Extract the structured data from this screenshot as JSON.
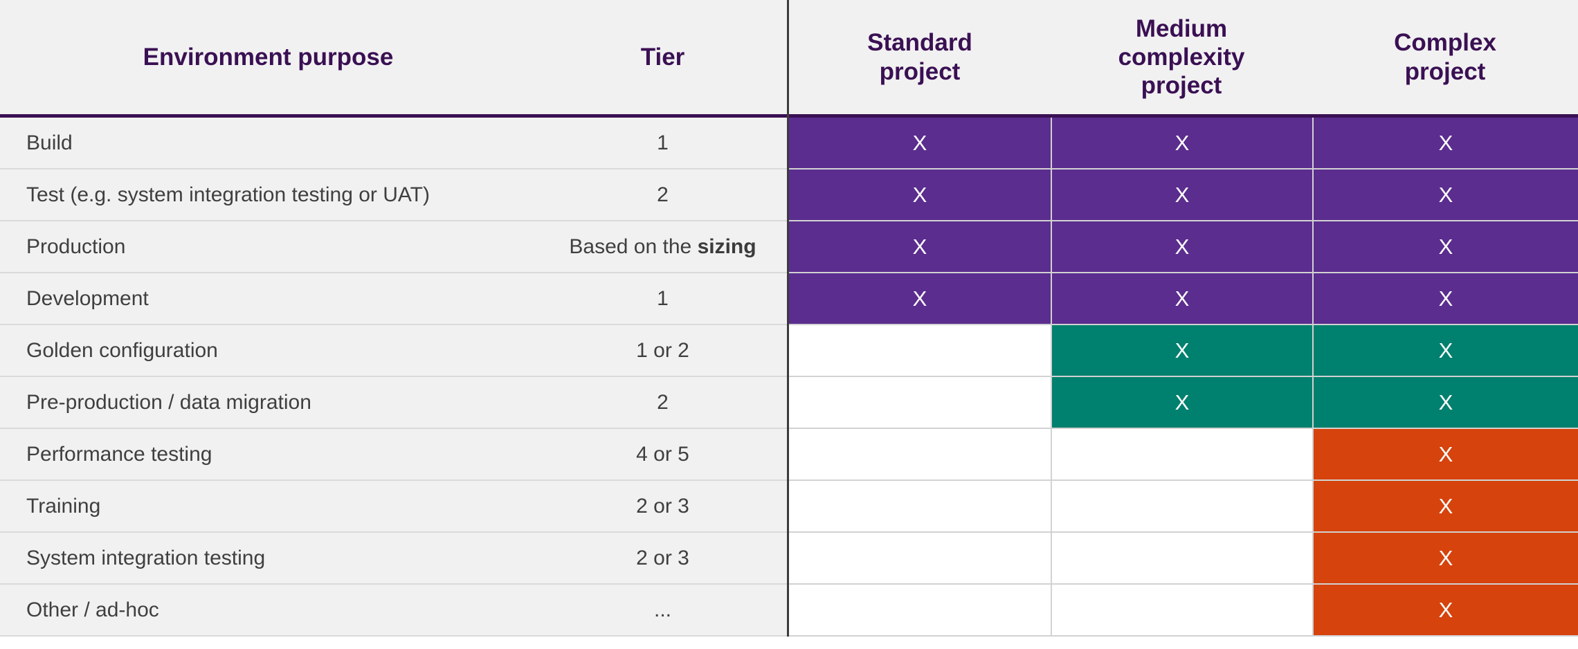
{
  "table": {
    "headers": {
      "environment_purpose": "Environment purpose",
      "tier": "Tier",
      "standard": "Standard\nproject",
      "medium": "Medium\ncomplexity\nproject",
      "complex": "Complex\nproject"
    },
    "mark_symbol": "X",
    "colors": {
      "header_text": "#3a1053",
      "header_underline": "#3a1053",
      "standard_fill": "#5b2d8f",
      "medium_extra_fill": "#00806e",
      "complex_extra_fill": "#d6430c",
      "row_background": "#f1f1f1",
      "empty_cell": "#ffffff",
      "label_text": "#3f3f3f"
    },
    "rows": [
      {
        "label": "Build",
        "tier": "1",
        "tier_bold": "",
        "standard": {
          "state": "purple",
          "label": "X"
        },
        "medium": {
          "state": "purple",
          "label": "X"
        },
        "complex": {
          "state": "purple",
          "label": "X"
        }
      },
      {
        "label": "Test (e.g. system integration testing or UAT)",
        "tier": "2",
        "tier_bold": "",
        "standard": {
          "state": "purple",
          "label": "X"
        },
        "medium": {
          "state": "purple",
          "label": "X"
        },
        "complex": {
          "state": "purple",
          "label": "X"
        }
      },
      {
        "label": "Production",
        "tier": "Based on the ",
        "tier_bold": "sizing",
        "standard": {
          "state": "purple",
          "label": "X"
        },
        "medium": {
          "state": "purple",
          "label": "X"
        },
        "complex": {
          "state": "purple",
          "label": "X"
        }
      },
      {
        "label": "Development",
        "tier": "1",
        "tier_bold": "",
        "standard": {
          "state": "purple",
          "label": "X"
        },
        "medium": {
          "state": "purple",
          "label": "X"
        },
        "complex": {
          "state": "purple",
          "label": "X"
        }
      },
      {
        "label": "Golden configuration",
        "tier": "1 or 2",
        "tier_bold": "",
        "standard": {
          "state": "none",
          "label": ""
        },
        "medium": {
          "state": "teal",
          "label": "X"
        },
        "complex": {
          "state": "teal",
          "label": "X"
        }
      },
      {
        "label": "Pre-production / data migration",
        "tier": "2",
        "tier_bold": "",
        "standard": {
          "state": "none",
          "label": ""
        },
        "medium": {
          "state": "teal",
          "label": "X"
        },
        "complex": {
          "state": "teal",
          "label": "X"
        }
      },
      {
        "label": "Performance testing",
        "tier": "4 or 5",
        "tier_bold": "",
        "standard": {
          "state": "none",
          "label": ""
        },
        "medium": {
          "state": "none",
          "label": ""
        },
        "complex": {
          "state": "orange",
          "label": "X"
        }
      },
      {
        "label": "Training",
        "tier": "2 or 3",
        "tier_bold": "",
        "standard": {
          "state": "none",
          "label": ""
        },
        "medium": {
          "state": "none",
          "label": ""
        },
        "complex": {
          "state": "orange",
          "label": "X"
        }
      },
      {
        "label": "System integration testing",
        "tier": "2 or 3",
        "tier_bold": "",
        "standard": {
          "state": "none",
          "label": ""
        },
        "medium": {
          "state": "none",
          "label": ""
        },
        "complex": {
          "state": "orange",
          "label": "X"
        }
      },
      {
        "label": "Other / ad-hoc",
        "tier": "...",
        "tier_bold": "",
        "standard": {
          "state": "none",
          "label": ""
        },
        "medium": {
          "state": "none",
          "label": ""
        },
        "complex": {
          "state": "orange",
          "label": "X"
        }
      }
    ]
  }
}
